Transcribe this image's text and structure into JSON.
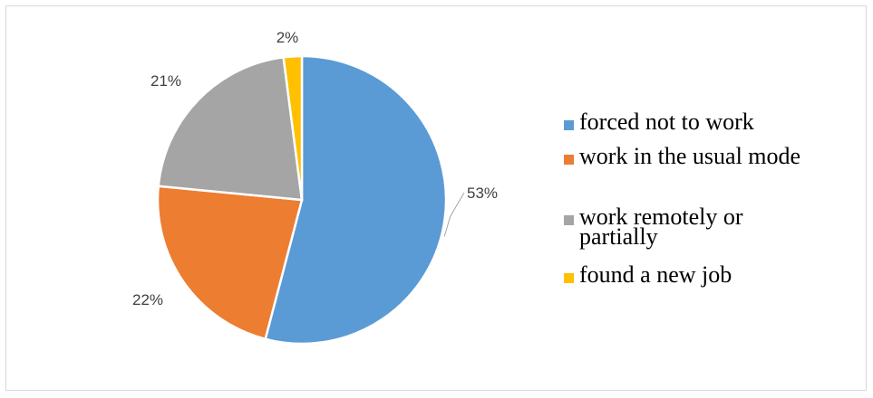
{
  "chart_data": {
    "type": "pie",
    "title": "",
    "legend_position": "right",
    "slices": [
      {
        "name": "forced not to work",
        "value": 53,
        "label": "53%",
        "color": "#5b9bd5"
      },
      {
        "name": "work in the usual mode",
        "value": 22,
        "label": "22%",
        "color": "#ed7d31"
      },
      {
        "name": "work remotely or partially",
        "value": 21,
        "label": "21%",
        "color": "#a5a5a5"
      },
      {
        "name": "found a new job",
        "value": 2,
        "label": "2%",
        "color": "#ffc000"
      }
    ]
  }
}
